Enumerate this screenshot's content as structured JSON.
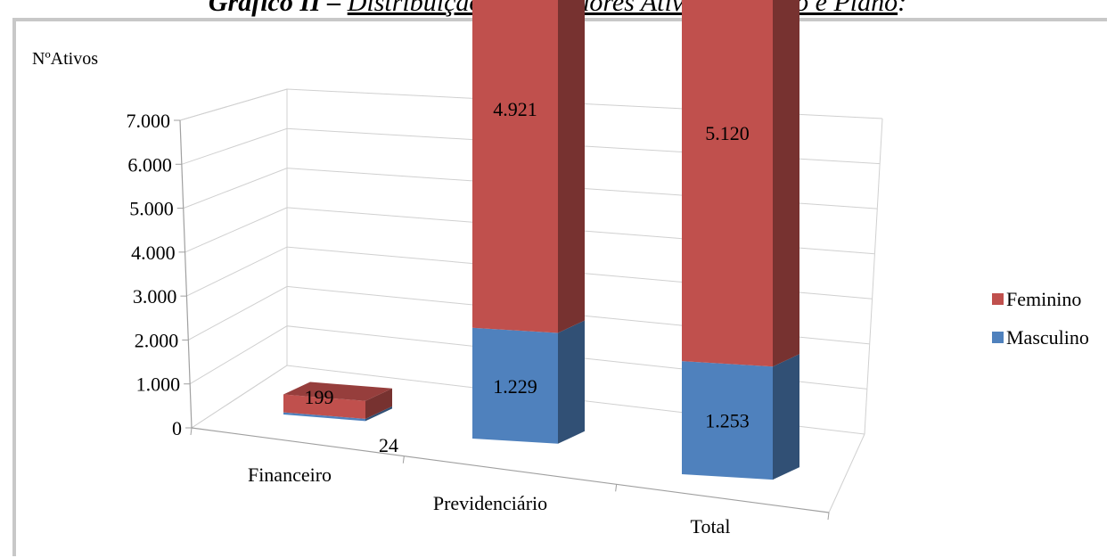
{
  "page": {
    "title_prefix": "Gráfico II –",
    "title_main": "Distribuição de Servidores Ativos por Sexo e Plano",
    "title_suffix": ":"
  },
  "colors": {
    "Feminino": "#c0504d",
    "Masculino": "#4f81bd"
  },
  "chart_data": {
    "type": "bar",
    "stacked": true,
    "three_d": true,
    "ylabel": "NºAtivos",
    "xlabel": "",
    "categories": [
      "Financeiro",
      "Previdenciário",
      "Total"
    ],
    "series": [
      {
        "name": "Masculino",
        "values": [
          24,
          1229,
          1253
        ],
        "labels": [
          "24",
          "1.229",
          "1.253"
        ]
      },
      {
        "name": "Feminino",
        "values": [
          199,
          4921,
          5120
        ],
        "labels": [
          "199",
          "4.921",
          "5.120"
        ]
      }
    ],
    "ylim": [
      0,
      7000
    ],
    "yticks": [
      0,
      1000,
      2000,
      3000,
      4000,
      5000,
      6000,
      7000
    ],
    "ytick_labels": [
      "0",
      "1.000",
      "2.000",
      "3.000",
      "4.000",
      "5.000",
      "6.000",
      "7.000"
    ],
    "grid": true,
    "legend": {
      "position": "right",
      "entries": [
        "Feminino",
        "Masculino"
      ]
    }
  }
}
